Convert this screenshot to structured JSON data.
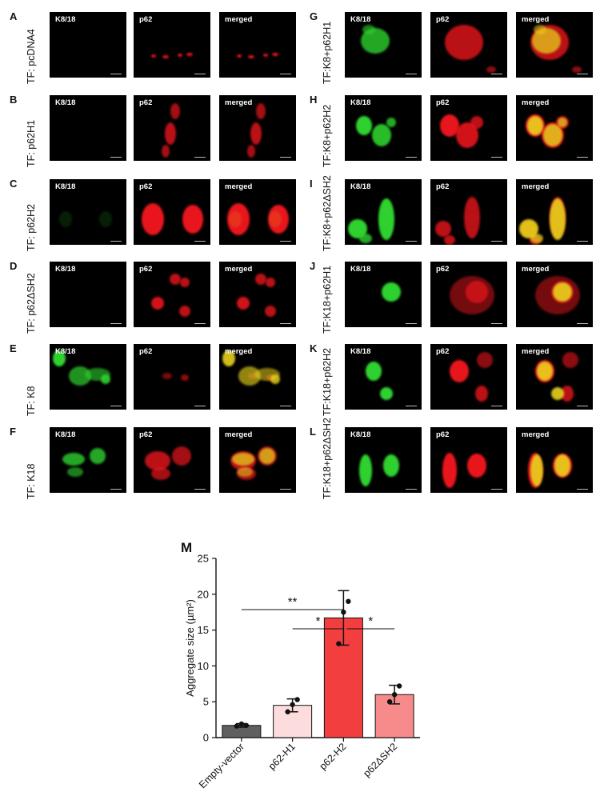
{
  "figure": {
    "channel_labels": [
      "K8/18",
      "p62",
      "merged"
    ],
    "panels": [
      {
        "letter": "A",
        "tf": "TF: pcDNA4"
      },
      {
        "letter": "B",
        "tf": "TF: p62H1"
      },
      {
        "letter": "C",
        "tf": "TF: p62H2"
      },
      {
        "letter": "D",
        "tf": "TF: p62ΔSH2"
      },
      {
        "letter": "E",
        "tf": "TF: K8"
      },
      {
        "letter": "F",
        "tf": "TF: K18"
      },
      {
        "letter": "G",
        "tf": "TF:K8+p62H1"
      },
      {
        "letter": "H",
        "tf": "TF:K8+p62H2"
      },
      {
        "letter": "I",
        "tf": "TF:K8+p62ΔSH2"
      },
      {
        "letter": "J",
        "tf": "TF:K18+p62H1"
      },
      {
        "letter": "K",
        "tf": "TF:K18+p62H2"
      },
      {
        "letter": "L",
        "tf": "TF:K18+p62ΔSH2"
      }
    ],
    "colors": {
      "green_channel": "#2fd12f",
      "red_channel": "#e8181c",
      "merged_yellow": "#e8d21a"
    }
  },
  "chart_data": {
    "panel_letter": "M",
    "type": "bar",
    "categories": [
      "Empty-vector",
      "p62-H1",
      "p62-H2",
      "p62ΔSH2"
    ],
    "values": [
      1.7,
      4.5,
      16.7,
      6.0
    ],
    "errors": [
      0.25,
      0.9,
      3.8,
      1.3
    ],
    "points": [
      [
        1.6,
        1.9,
        1.7
      ],
      [
        3.6,
        4.6,
        5.3
      ],
      [
        13.1,
        17.5,
        19.0
      ],
      [
        5.0,
        6.0,
        7.2
      ]
    ],
    "bar_colors": [
      "#5f5f5f",
      "#fcdcdc",
      "#f23e3e",
      "#f78a8a"
    ],
    "ylabel": "Aggregate size (µm²)",
    "ylim": [
      0,
      25
    ],
    "yticks": [
      "0",
      "5",
      "10",
      "15",
      "20",
      "25"
    ],
    "significance": [
      {
        "from": 0,
        "to": 2,
        "label": "**"
      },
      {
        "from": 1,
        "to": 2,
        "label": "*"
      },
      {
        "from": 2,
        "to": 3,
        "label": "*"
      }
    ]
  }
}
